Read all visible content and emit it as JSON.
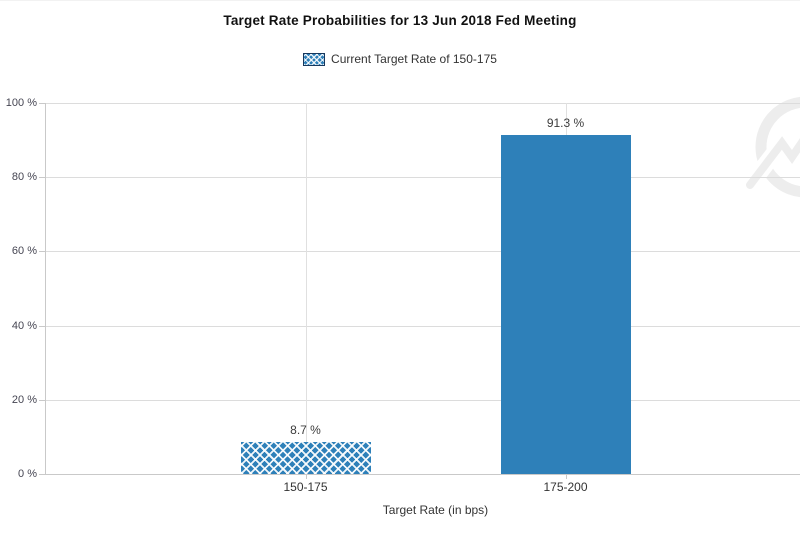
{
  "title": "Target Rate Probabilities for 13 Jun 2018 Fed Meeting",
  "legend": {
    "label": "Current Target Rate of 150-175",
    "swatch": "blue-crosshatch-swatch"
  },
  "colors": {
    "bar_blue": "#2e80b9",
    "legend_border_navy": "#16375c",
    "gridline": "#dcdcdc",
    "axis": "#c9c9c9",
    "tick_label": "#454552",
    "label_text": "#333333",
    "title_text": "#111111",
    "watermark_gray": "#ededed"
  },
  "chart_data": {
    "type": "bar",
    "title": "Target Rate Probabilities for 13 Jun 2018 Fed Meeting",
    "series_name": "Current Target Rate of 150-175",
    "categories": [
      "150-175",
      "175-200"
    ],
    "values": [
      8.7,
      91.3
    ],
    "value_labels": [
      "8.7 %",
      "91.3 %"
    ],
    "bar_styles": [
      "crosshatch",
      "solid"
    ],
    "xlabel": "Target Rate (in bps)",
    "ylabel": "",
    "ylim": [
      0,
      100
    ],
    "yticks": [
      0,
      20,
      40,
      60,
      80,
      100
    ],
    "ytick_labels": [
      "0 %",
      "20 %",
      "40 %",
      "60 %",
      "80 %",
      "100 %"
    ],
    "grid": true,
    "legend_position": "top-center"
  },
  "watermark": "circle-lightning-bolt-logo"
}
